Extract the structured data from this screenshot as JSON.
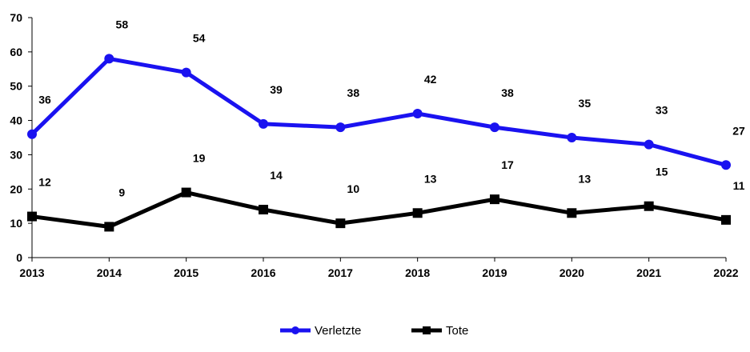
{
  "chart_data": {
    "type": "line",
    "title": "",
    "xlabel": "",
    "ylabel": "",
    "categories": [
      "2013",
      "2014",
      "2015",
      "2016",
      "2017",
      "2018",
      "2019",
      "2020",
      "2021",
      "2022"
    ],
    "ylim": [
      0,
      70
    ],
    "yticks": [
      "0",
      "10",
      "20",
      "30",
      "40",
      "50",
      "60",
      "70"
    ],
    "grid": false,
    "legend_position": "bottom",
    "series": [
      {
        "name": "Verletzte",
        "color": "#1a12f0",
        "marker": "circle",
        "values": [
          36,
          58,
          54,
          39,
          38,
          42,
          38,
          35,
          33,
          27
        ]
      },
      {
        "name": "Tote",
        "color": "#000000",
        "marker": "square",
        "values": [
          12,
          9,
          19,
          14,
          10,
          13,
          17,
          13,
          15,
          11
        ]
      }
    ]
  }
}
